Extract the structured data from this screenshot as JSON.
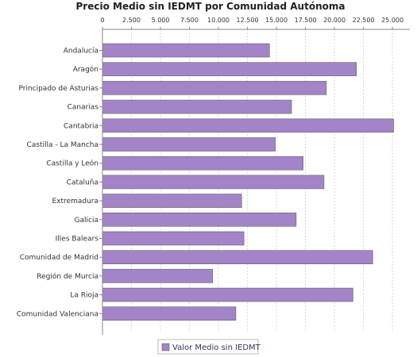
{
  "chart_data": {
    "type": "bar",
    "orientation": "horizontal",
    "title": "Precio Medio sin IEDMT por Comunidad Autónoma",
    "categories": [
      "Andalucía",
      "Aragón",
      "Principado de Asturias",
      "Canarias",
      "Cantabria",
      "Castilla - La Mancha",
      "Castilla y León",
      "Cataluña",
      "Extremadura",
      "Galicia",
      "Illes Balears",
      "Comunidad de Madrid",
      "Región de Murcia",
      "La Rioja",
      "Comunidad Valenciana"
    ],
    "series": [
      {
        "name": "Valor Medio sin IEDMT",
        "color": "#a384c8",
        "values": [
          14400,
          21900,
          19300,
          16300,
          25100,
          14900,
          17300,
          19100,
          12000,
          16700,
          12200,
          23300,
          9500,
          21600,
          11500
        ]
      }
    ],
    "x_ticks": [
      "0",
      "2.500",
      "5.000",
      "7.500",
      "10.000",
      "12.500",
      "15.000",
      "17.500",
      "20.000",
      "22.500",
      "25.000"
    ],
    "xlim": [
      0,
      26500
    ],
    "tick_step": 2500,
    "grid": true,
    "axis_position": "top",
    "legend_position": "bottom"
  }
}
